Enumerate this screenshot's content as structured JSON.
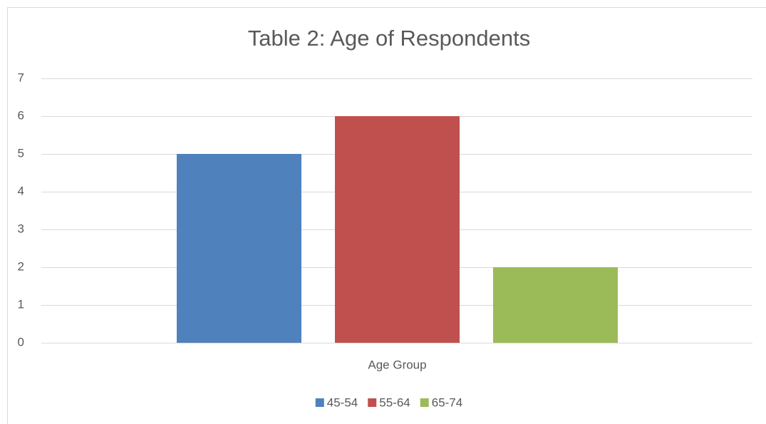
{
  "chart_data": {
    "type": "bar",
    "title": "Table 2: Age of Respondents",
    "categories": [
      "Age Group"
    ],
    "series": [
      {
        "name": "45-54",
        "color": "#4f81bd",
        "values": [
          5
        ]
      },
      {
        "name": "55-64",
        "color": "#c0504d",
        "values": [
          6
        ]
      },
      {
        "name": "65-74",
        "color": "#9bbb59",
        "values": [
          2
        ]
      }
    ],
    "ylim": [
      0,
      7
    ],
    "yticks": [
      0,
      1,
      2,
      3,
      4,
      5,
      6,
      7
    ],
    "grid": true,
    "legend": "bottom"
  }
}
